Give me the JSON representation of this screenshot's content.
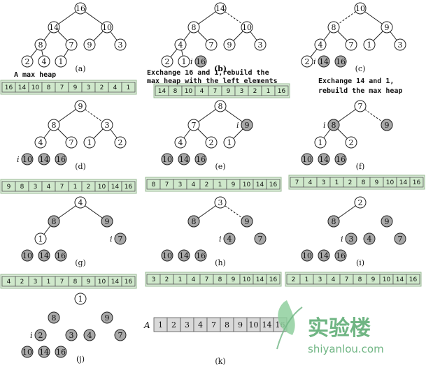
{
  "panels": [
    {
      "label": "(a)",
      "nodes": [
        {
          "v": "16",
          "g": false
        },
        {
          "v": "14",
          "g": false
        },
        {
          "v": "10",
          "g": false
        },
        {
          "v": "8",
          "g": false
        },
        {
          "v": "7",
          "g": false
        },
        {
          "v": "9",
          "g": false
        },
        {
          "v": "3",
          "g": false
        },
        {
          "v": "2",
          "g": false
        },
        {
          "v": "4",
          "g": false
        },
        {
          "v": "1",
          "g": false
        }
      ],
      "edges": [
        [
          0,
          1
        ],
        [
          0,
          2
        ],
        [
          1,
          3
        ],
        [
          1,
          4
        ],
        [
          2,
          5
        ],
        [
          2,
          6
        ],
        [
          3,
          7
        ],
        [
          3,
          8
        ],
        [
          4,
          9
        ]
      ],
      "dashed": [],
      "pointer": null
    },
    {
      "label": "(b)",
      "nodes": [
        {
          "v": "14",
          "g": false
        },
        {
          "v": "8",
          "g": false
        },
        {
          "v": "10",
          "g": false
        },
        {
          "v": "4",
          "g": false
        },
        {
          "v": "7",
          "g": false
        },
        {
          "v": "9",
          "g": false
        },
        {
          "v": "3",
          "g": false
        },
        {
          "v": "2",
          "g": false
        },
        {
          "v": "1",
          "g": false
        },
        {
          "v": "16",
          "g": true
        }
      ],
      "edges": [
        [
          0,
          1
        ],
        [
          0,
          2
        ],
        [
          1,
          3
        ],
        [
          1,
          4
        ],
        [
          2,
          5
        ],
        [
          2,
          6
        ],
        [
          3,
          7
        ],
        [
          3,
          8
        ]
      ],
      "dashed": [
        [
          0,
          2
        ]
      ],
      "pointer": {
        "text": "i",
        "node": 9
      }
    },
    {
      "label": "(c)",
      "nodes": [
        {
          "v": "10",
          "g": false
        },
        {
          "v": "8",
          "g": false
        },
        {
          "v": "9",
          "g": false
        },
        {
          "v": "4",
          "g": false
        },
        {
          "v": "7",
          "g": false
        },
        {
          "v": "1",
          "g": false
        },
        {
          "v": "3",
          "g": false
        },
        {
          "v": "2",
          "g": false
        },
        {
          "v": "14",
          "g": true
        },
        {
          "v": "16",
          "g": true
        }
      ],
      "edges": [
        [
          0,
          1
        ],
        [
          0,
          2
        ],
        [
          1,
          3
        ],
        [
          1,
          4
        ],
        [
          2,
          5
        ],
        [
          2,
          6
        ],
        [
          3,
          7
        ]
      ],
      "dashed": [
        [
          0,
          1
        ]
      ],
      "pointer": {
        "text": "i",
        "node": 8
      }
    },
    {
      "label": "(d)",
      "nodes": [
        {
          "v": "9",
          "g": false
        },
        {
          "v": "8",
          "g": false
        },
        {
          "v": "3",
          "g": false
        },
        {
          "v": "4",
          "g": false
        },
        {
          "v": "7",
          "g": false
        },
        {
          "v": "1",
          "g": false
        },
        {
          "v": "2",
          "g": false
        },
        {
          "v": "10",
          "g": true
        },
        {
          "v": "14",
          "g": true
        },
        {
          "v": "16",
          "g": true
        }
      ],
      "edges": [
        [
          0,
          1
        ],
        [
          0,
          2
        ],
        [
          1,
          3
        ],
        [
          1,
          4
        ],
        [
          2,
          5
        ],
        [
          2,
          6
        ]
      ],
      "dashed": [
        [
          0,
          2
        ]
      ],
      "pointer": {
        "text": "i",
        "node": 7
      }
    },
    {
      "label": "(e)",
      "nodes": [
        {
          "v": "8",
          "g": false
        },
        {
          "v": "7",
          "g": false
        },
        {
          "v": "3",
          "g": false
        },
        {
          "v": "4",
          "g": false
        },
        {
          "v": "2",
          "g": false
        },
        {
          "v": "1",
          "g": false
        },
        {
          "v": "9",
          "g": true
        },
        {
          "v": "10",
          "g": true
        },
        {
          "v": "14",
          "g": true
        },
        {
          "v": "16",
          "g": true
        }
      ],
      "edges": [
        [
          0,
          1
        ],
        [
          0,
          2
        ],
        [
          1,
          3
        ],
        [
          1,
          4
        ],
        [
          2,
          5
        ]
      ],
      "dashed": [],
      "pointer": {
        "text": "i",
        "node": 6
      }
    },
    {
      "label": "(f)",
      "nodes": [
        {
          "v": "7",
          "g": false
        },
        {
          "v": "4",
          "g": false
        },
        {
          "v": "3",
          "g": false
        },
        {
          "v": "1",
          "g": false
        },
        {
          "v": "2",
          "g": false
        },
        {
          "v": "8",
          "g": true
        },
        {
          "v": "9",
          "g": true
        },
        {
          "v": "10",
          "g": true
        },
        {
          "v": "14",
          "g": true
        },
        {
          "v": "16",
          "g": true
        }
      ],
      "edges": [
        [
          0,
          1
        ],
        [
          0,
          2
        ],
        [
          1,
          3
        ],
        [
          1,
          4
        ]
      ],
      "dashed": [
        [
          0,
          2
        ]
      ],
      "pointer": {
        "text": "i",
        "node": 5
      }
    },
    {
      "label": "(g)",
      "nodes": [
        {
          "v": "4",
          "g": false
        },
        {
          "v": "2",
          "g": false
        },
        {
          "v": "3",
          "g": false
        },
        {
          "v": "1",
          "g": false
        },
        {
          "v": "7",
          "g": true
        },
        {
          "v": "8",
          "g": true
        },
        {
          "v": "9",
          "g": true
        },
        {
          "v": "10",
          "g": true
        },
        {
          "v": "14",
          "g": true
        },
        {
          "v": "16",
          "g": true
        }
      ],
      "edges": [
        [
          0,
          1
        ],
        [
          0,
          2
        ],
        [
          1,
          3
        ]
      ],
      "dashed": [],
      "pointer": {
        "text": "i",
        "node": 4
      }
    },
    {
      "label": "(h)",
      "nodes": [
        {
          "v": "3",
          "g": false
        },
        {
          "v": "2",
          "g": false
        },
        {
          "v": "1",
          "g": false
        },
        {
          "v": "4",
          "g": true
        },
        {
          "v": "7",
          "g": true
        },
        {
          "v": "8",
          "g": true
        },
        {
          "v": "9",
          "g": true
        },
        {
          "v": "10",
          "g": true
        },
        {
          "v": "14",
          "g": true
        },
        {
          "v": "16",
          "g": true
        }
      ],
      "edges": [
        [
          0,
          1
        ],
        [
          0,
          2
        ]
      ],
      "dashed": [
        [
          0,
          2
        ]
      ],
      "pointer": {
        "text": "i",
        "node": 3
      }
    },
    {
      "label": "(i)",
      "nodes": [
        {
          "v": "2",
          "g": false
        },
        {
          "v": "1",
          "g": false
        },
        {
          "v": "3",
          "g": true
        },
        {
          "v": "4",
          "g": true
        },
        {
          "v": "7",
          "g": true
        },
        {
          "v": "8",
          "g": true
        },
        {
          "v": "9",
          "g": true
        },
        {
          "v": "10",
          "g": true
        },
        {
          "v": "14",
          "g": true
        },
        {
          "v": "16",
          "g": true
        }
      ],
      "edges": [
        [
          0,
          1
        ]
      ],
      "dashed": [],
      "pointer": {
        "text": "i",
        "node": 2
      }
    },
    {
      "label": "(j)",
      "nodes": [
        {
          "v": "1",
          "g": false
        },
        {
          "v": "2",
          "g": true
        },
        {
          "v": "3",
          "g": true
        },
        {
          "v": "4",
          "g": true
        },
        {
          "v": "7",
          "g": true
        },
        {
          "v": "8",
          "g": true
        },
        {
          "v": "9",
          "g": true
        },
        {
          "v": "10",
          "g": true
        },
        {
          "v": "14",
          "g": true
        },
        {
          "v": "16",
          "g": true
        }
      ],
      "edges": [],
      "dashed": [],
      "pointer": {
        "text": "i",
        "node": 1
      }
    }
  ],
  "arrays": [
    [
      "16",
      "14",
      "10",
      "8",
      "7",
      "9",
      "3",
      "2",
      "4",
      "1"
    ],
    [
      "14",
      "8",
      "10",
      "4",
      "7",
      "9",
      "3",
      "2",
      "1",
      "16"
    ],
    [
      "9",
      "8",
      "3",
      "4",
      "7",
      "1",
      "2",
      "10",
      "14",
      "16"
    ],
    [
      "8",
      "7",
      "3",
      "4",
      "2",
      "1",
      "9",
      "10",
      "14",
      "16"
    ],
    [
      "7",
      "4",
      "3",
      "1",
      "2",
      "8",
      "9",
      "10",
      "14",
      "16"
    ],
    [
      "4",
      "2",
      "3",
      "1",
      "7",
      "8",
      "9",
      "10",
      "14",
      "16"
    ],
    [
      "3",
      "2",
      "1",
      "4",
      "7",
      "8",
      "9",
      "10",
      "14",
      "16"
    ],
    [
      "2",
      "1",
      "3",
      "4",
      "7",
      "8",
      "9",
      "10",
      "14",
      "16"
    ]
  ],
  "final_array": {
    "label": "(k)",
    "name": "A",
    "values": [
      "1",
      "2",
      "3",
      "4",
      "7",
      "8",
      "9",
      "10",
      "14",
      "16"
    ]
  },
  "annotations": {
    "max_heap": "A max heap",
    "exchange_16_line1": "Exchange 16 and 1,rebuild the",
    "exchange_16_line2": "max heap with the left elements",
    "exchange_14_line1": "Exchange 14 and 1,",
    "exchange_14_line2": "rebuild the max heap"
  },
  "watermark": {
    "name": "实验楼",
    "url": "shiyanlou.com",
    "color": "#6fb583"
  }
}
